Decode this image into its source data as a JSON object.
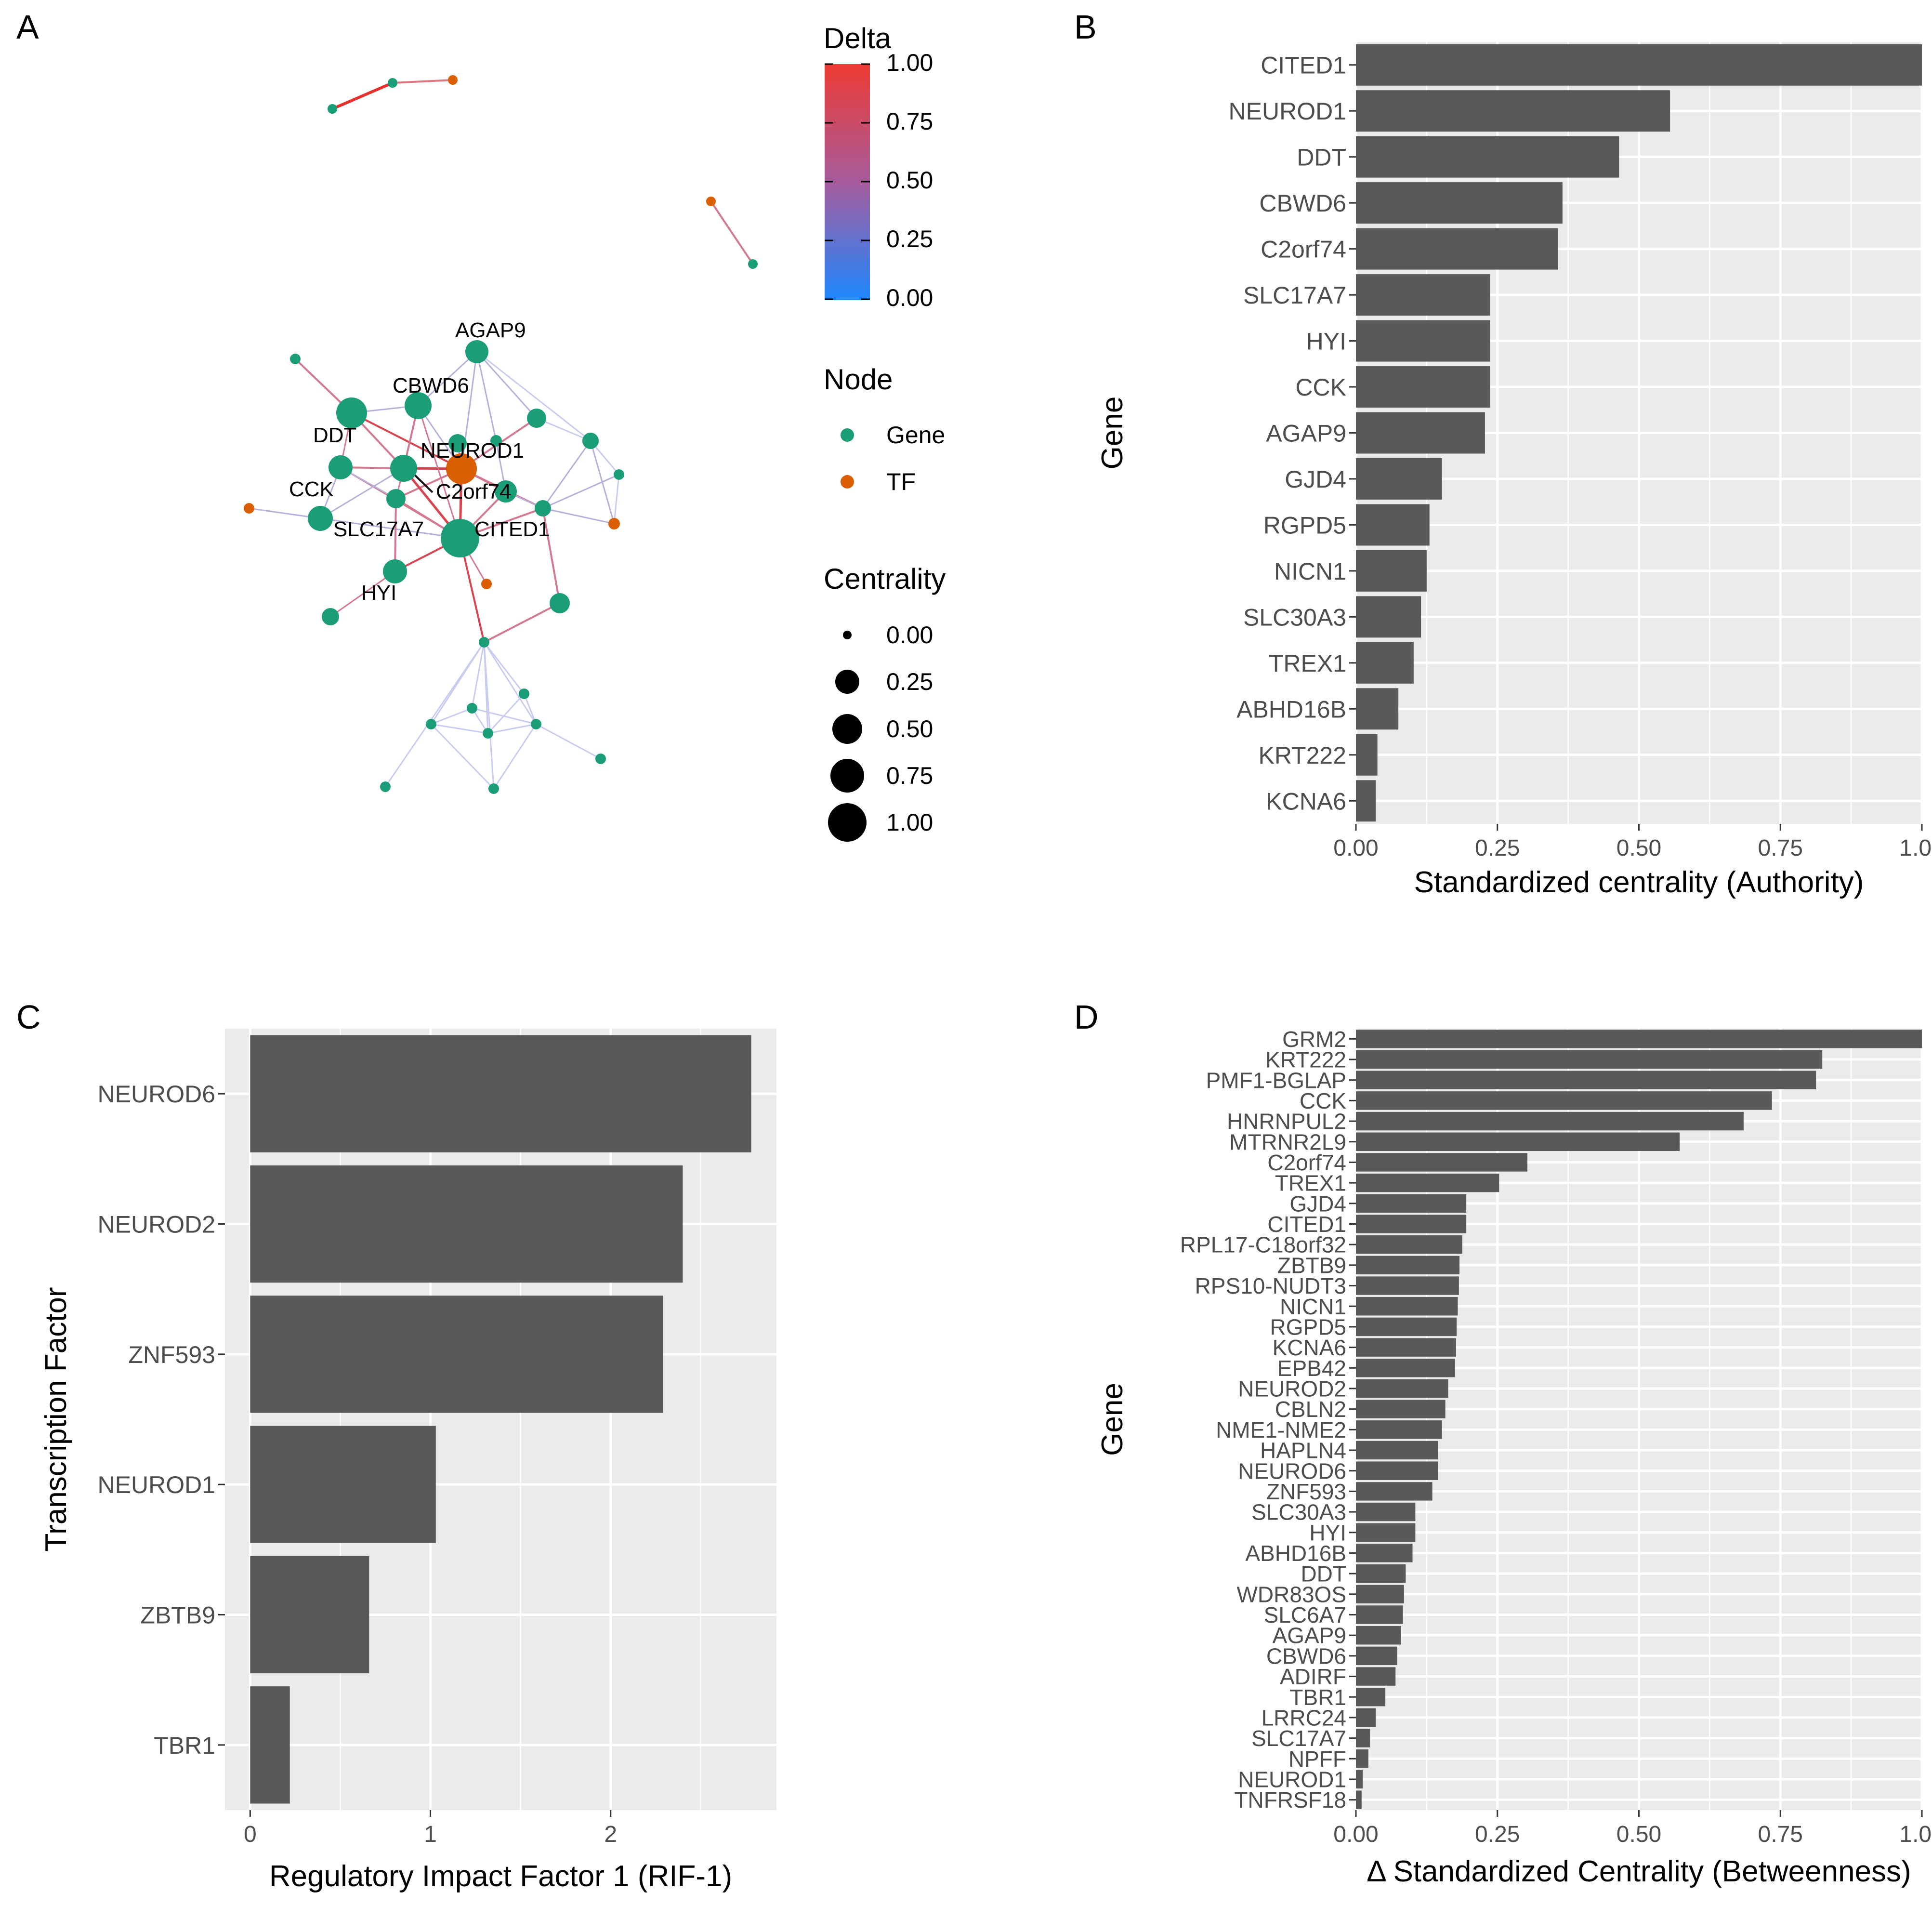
{
  "panel_labels": {
    "a": "A",
    "b": "B",
    "c": "C",
    "d": "D"
  },
  "network": {
    "legend": {
      "delta_title": "Delta",
      "delta_ticks": [
        "1.00",
        "0.75",
        "0.50",
        "0.25",
        "0.00"
      ],
      "node_title": "Node",
      "node_types": [
        {
          "label": "Gene",
          "color": "#1B9E77"
        },
        {
          "label": "TF",
          "color": "#D95F02"
        }
      ],
      "centrality_title": "Centrality",
      "centrality_ticks": [
        "0.00",
        "0.25",
        "0.50",
        "0.75",
        "1.00"
      ]
    },
    "node_labels": [
      "AGAP9",
      "CBWD6",
      "DDT",
      "NEUROD1",
      "CCK",
      "C2orf74",
      "SLC17A7",
      "CITED1",
      "HYI"
    ]
  },
  "chart_data": [
    {
      "type": "bar",
      "orientation": "horizontal",
      "panel": "B",
      "categories": [
        "CITED1",
        "NEUROD1",
        "DDT",
        "CBWD6",
        "C2orf74",
        "SLC17A7",
        "HYI",
        "CCK",
        "AGAP9",
        "GJD4",
        "RGPD5",
        "NICN1",
        "SLC30A3",
        "TREX1",
        "ABHD16B",
        "KRT222",
        "KCNA6"
      ],
      "values": [
        1.0,
        0.555,
        0.465,
        0.365,
        0.357,
        0.237,
        0.237,
        0.237,
        0.228,
        0.152,
        0.13,
        0.125,
        0.115,
        0.102,
        0.075,
        0.038,
        0.035
      ],
      "xlim": [
        0,
        1
      ],
      "xticks": [
        "0.00",
        "0.25",
        "0.50",
        "0.75",
        "1.00"
      ],
      "xlabel": "Standardized centrality (Authority)",
      "ylabel": "Gene"
    },
    {
      "type": "bar",
      "orientation": "horizontal",
      "panel": "C",
      "categories": [
        "NEUROD6",
        "NEUROD2",
        "ZNF593",
        "NEUROD1",
        "ZBTB9",
        "TBR1"
      ],
      "values": [
        2.78,
        2.4,
        2.29,
        1.03,
        0.66,
        0.22
      ],
      "xlim": [
        -0.14,
        2.92
      ],
      "xticks": [
        "0",
        "1",
        "2"
      ],
      "xlabel": "Regulatory Impact Factor 1 (RIF-1)",
      "ylabel": "Transcription Factor"
    },
    {
      "type": "bar",
      "orientation": "horizontal",
      "panel": "D",
      "categories": [
        "GRM2",
        "KRT222",
        "PMF1-BGLAP",
        "CCK",
        "HNRNPUL2",
        "MTRNR2L9",
        "C2orf74",
        "TREX1",
        "GJD4",
        "CITED1",
        "RPL17-C18orf32",
        "ZBTB9",
        "RPS10-NUDT3",
        "NICN1",
        "RGPD5",
        "KCNA6",
        "EPB42",
        "NEUROD2",
        "CBLN2",
        "NME1-NME2",
        "HAPLN4",
        "NEUROD6",
        "ZNF593",
        "SLC30A3",
        "HYI",
        "ABHD16B",
        "DDT",
        "WDR83OS",
        "SLC6A7",
        "AGAP9",
        "CBWD6",
        "ADIRF",
        "TBR1",
        "LRRC24",
        "SLC17A7",
        "NPFF",
        "NEUROD1",
        "TNFRSF18"
      ],
      "values": [
        1.0,
        0.824,
        0.813,
        0.735,
        0.685,
        0.572,
        0.303,
        0.253,
        0.195,
        0.195,
        0.188,
        0.183,
        0.182,
        0.18,
        0.178,
        0.177,
        0.175,
        0.163,
        0.158,
        0.152,
        0.145,
        0.145,
        0.135,
        0.105,
        0.105,
        0.1,
        0.088,
        0.085,
        0.083,
        0.08,
        0.073,
        0.07,
        0.052,
        0.035,
        0.025,
        0.022,
        0.012,
        0.01
      ],
      "xlim": [
        0,
        1
      ],
      "xticks": [
        "0.00",
        "0.25",
        "0.50",
        "0.75",
        "1.00"
      ],
      "xlabel": "Δ Standardized Centrality (Betweenness)",
      "ylabel": "Gene"
    }
  ]
}
